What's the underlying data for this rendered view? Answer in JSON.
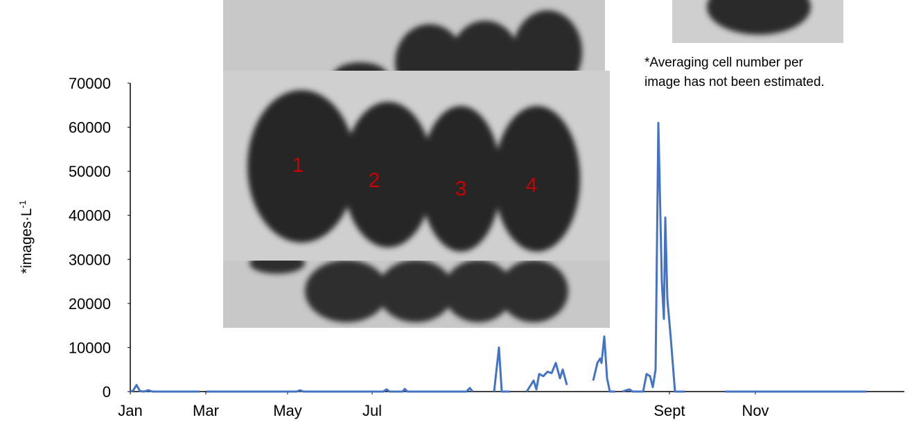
{
  "chart_data": {
    "type": "line",
    "y_label": "*images·L",
    "y_label_sup": "-1",
    "annotation": [
      "*Averaging cell number per",
      "image has not been estimated."
    ],
    "image_labels": [
      "1",
      "2",
      "3",
      "4"
    ],
    "x": [
      0,
      4,
      9,
      14,
      20,
      26,
      32,
      100,
      null,
      110,
      240,
      245,
      250,
      365,
      370,
      374,
      393,
      396,
      400,
      485,
      490,
      494,
      null,
      525,
      532,
      536,
      548,
      null,
      572,
      578,
      582,
      586,
      590,
      596,
      602,
      608,
      614,
      620,
      624,
      630,
      null,
      668,
      674,
      678,
      680,
      684,
      688,
      692,
      700,
      null,
      710,
      720,
      725,
      740,
      745,
      750,
      754,
      758,
      762,
      767,
      770,
      772,
      775,
      780,
      786,
      800,
      null,
      858,
      1062
    ],
    "series": [
      {
        "name": "images",
        "color": "#4472c4",
        "values": [
          0,
          200,
          1500,
          100,
          0,
          300,
          0,
          0,
          null,
          0,
          0,
          300,
          0,
          0,
          500,
          0,
          0,
          600,
          0,
          0,
          800,
          0,
          null,
          0,
          10000,
          0,
          0,
          null,
          0,
          1500,
          2500,
          500,
          4000,
          3500,
          4500,
          4200,
          6500,
          3000,
          5000,
          1500,
          null,
          2500,
          6500,
          7500,
          6500,
          12500,
          3000,
          0,
          0,
          null,
          0,
          500,
          0,
          0,
          4000,
          3500,
          1000,
          5000,
          61000,
          25000,
          16500,
          39500,
          21000,
          12000,
          0,
          0,
          null,
          0,
          0
        ]
      }
    ],
    "xlim": [
      0,
      1117
    ],
    "xticks": [
      {
        "value": 0,
        "label": "Jan"
      },
      {
        "value": 109,
        "label": "Mar"
      },
      {
        "value": 227,
        "label": "May"
      },
      {
        "value": 349,
        "label": "Jul"
      },
      {
        "value": 778,
        "label": "Sept"
      },
      {
        "value": 902,
        "label": "Nov"
      }
    ],
    "ylim": [
      0,
      70000
    ],
    "yticks": [
      0,
      10000,
      20000,
      30000,
      40000,
      50000,
      60000,
      70000
    ]
  }
}
